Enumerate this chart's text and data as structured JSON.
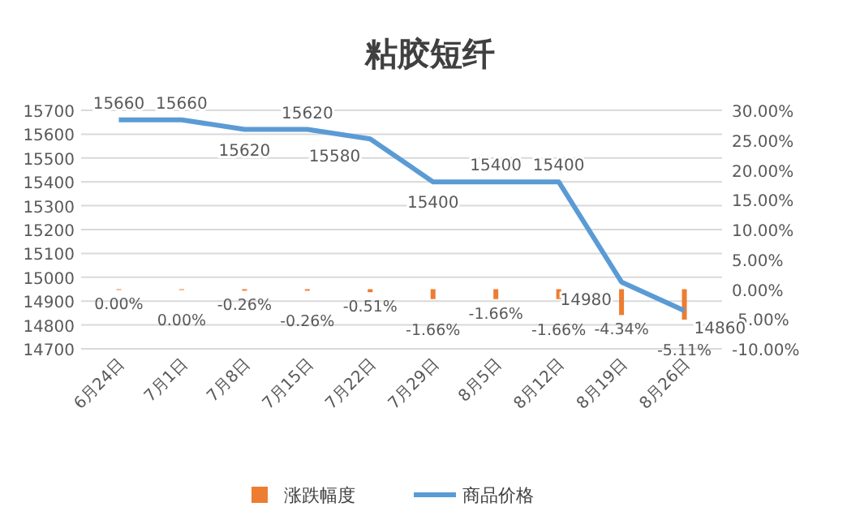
{
  "chart_data": {
    "type": "line",
    "title": "粘胶短纤",
    "categories": [
      "6月24日",
      "7月1日",
      "7月8日",
      "7月15日",
      "7月22日",
      "7月29日",
      "8月5日",
      "8月12日",
      "8月19日",
      "8月26日"
    ],
    "series": [
      {
        "name": "涨跌幅度",
        "type": "bar",
        "axis": "y2",
        "color": "#ed7d31",
        "values": [
          0,
          0,
          -0.26,
          -0.26,
          -0.51,
          -1.66,
          -1.66,
          -1.66,
          -4.34,
          -5.11
        ],
        "value_labels": [
          "0.00%",
          "0.00%",
          "-0.26%",
          "-0.26%",
          "-0.51%",
          "-1.66%",
          "-1.66%",
          "-1.66%",
          "-4.34%",
          "-5.11%"
        ]
      },
      {
        "name": "商品价格",
        "color": "#5b9bd5",
        "values": [
          15660,
          15660,
          15620,
          15620,
          15580,
          15400,
          15400,
          15400,
          14980,
          14860
        ]
      }
    ],
    "ylim": [
      14700,
      15700
    ],
    "yticks": [
      14700,
      14800,
      14900,
      15000,
      15100,
      15200,
      15300,
      15400,
      15500,
      15600,
      15700
    ],
    "y2lim": [
      -10,
      30
    ],
    "y2ticks": [
      {
        "value": -10,
        "label": "-10.00%"
      },
      {
        "value": -5,
        "label": "-5.00%"
      },
      {
        "value": 0,
        "label": "0.00%"
      },
      {
        "value": 5,
        "label": "5.00%"
      },
      {
        "value": 10,
        "label": "10.00%"
      },
      {
        "value": 15,
        "label": "15.00%"
      },
      {
        "value": 20,
        "label": "20.00%"
      },
      {
        "value": 25,
        "label": "25.00%"
      },
      {
        "value": 30,
        "label": "30.00%"
      }
    ],
    "grid": "y",
    "legend": "bottom",
    "data_labels": true,
    "marker": "none"
  }
}
